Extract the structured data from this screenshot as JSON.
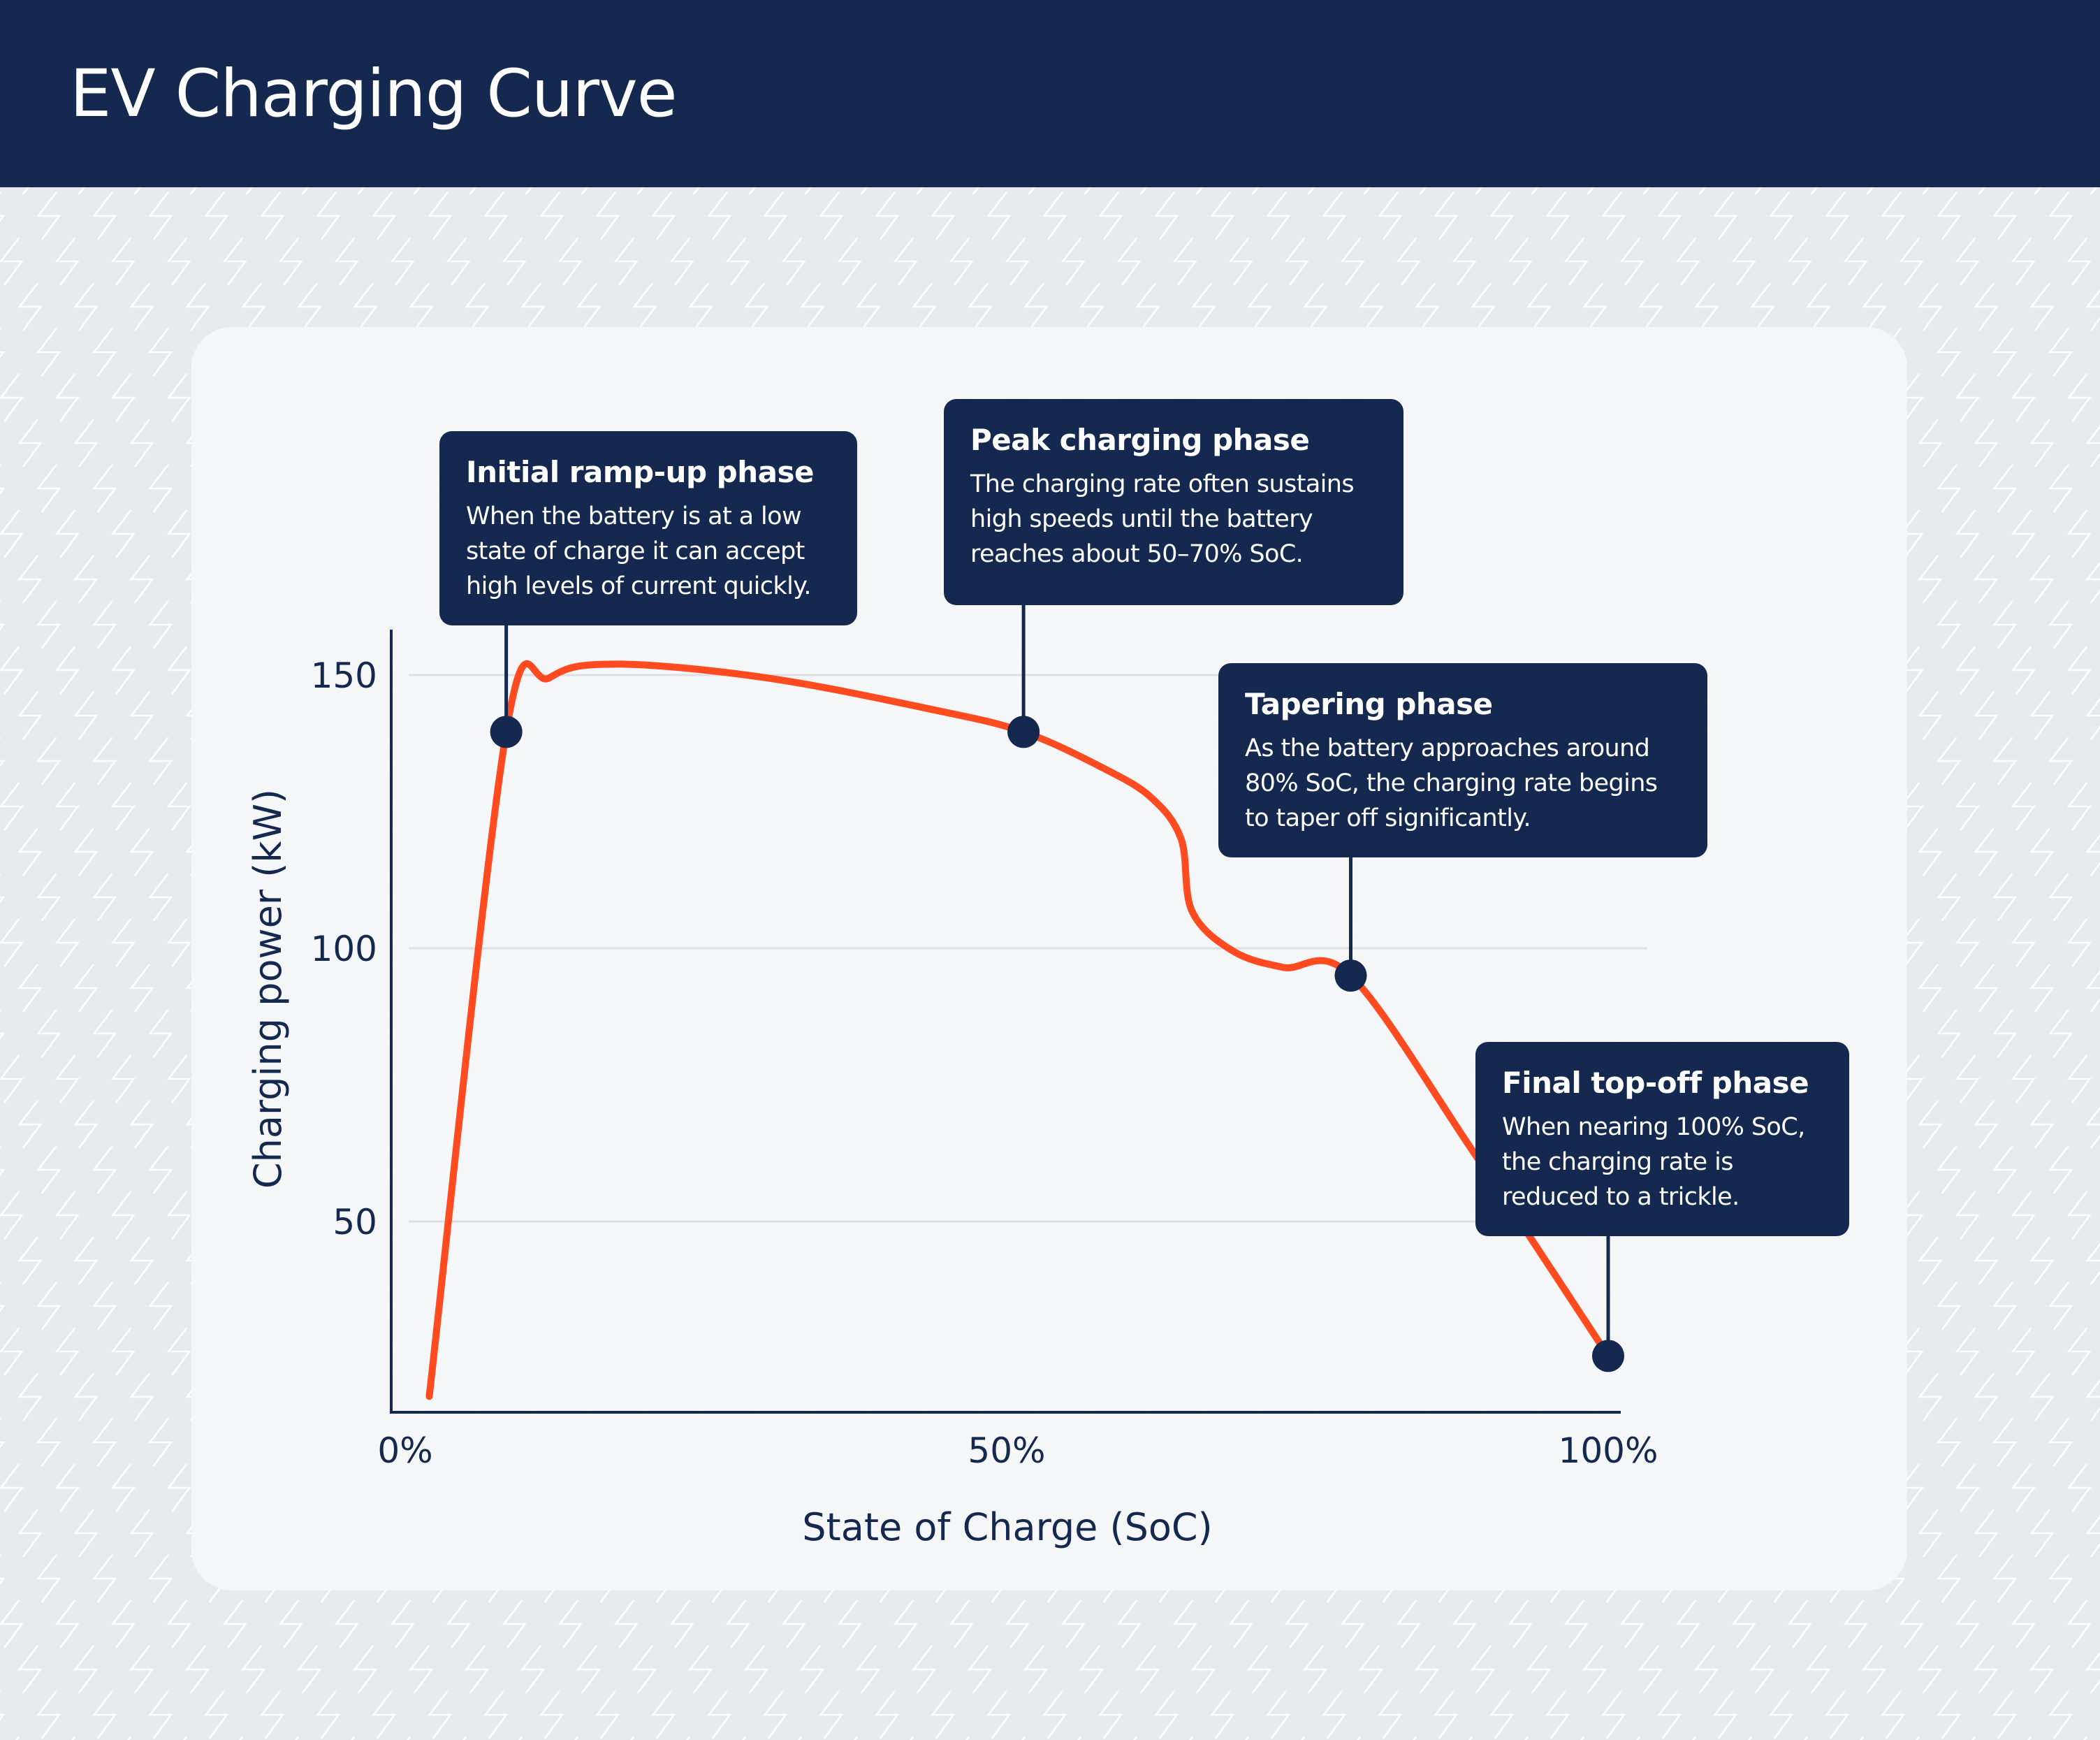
{
  "header": {
    "title": "EV Charging Curve"
  },
  "colors": {
    "navy": "#15284f",
    "curve": "#ff4b1f",
    "background": "#e7eaed",
    "card": "#f4f5f7",
    "grid": "#dcdfe4"
  },
  "background_icon": "lightning-bolt-pattern",
  "chart_data": {
    "type": "line",
    "title": "",
    "xlabel": "State of Charge (SoC)",
    "ylabel": "Charging power (kW)",
    "xlim": [
      0,
      100
    ],
    "ylim": [
      15,
      160
    ],
    "x_ticks": [
      {
        "value": 0,
        "label": "0%"
      },
      {
        "value": 50,
        "label": "50%"
      },
      {
        "value": 100,
        "label": "100%"
      }
    ],
    "y_ticks": [
      {
        "value": 50,
        "label": "50"
      },
      {
        "value": 100,
        "label": "100"
      },
      {
        "value": 150,
        "label": "150"
      }
    ],
    "grid": "horizontal",
    "series": [
      {
        "x": [
          2,
          8.4,
          12,
          17.5,
          30,
          44,
          51.4,
          58,
          62,
          64.5,
          65.4,
          68.8,
          73,
          78.6,
          88.8,
          100
        ],
        "y": [
          18,
          139.6,
          149.5,
          152,
          149.5,
          143.6,
          139.6,
          133,
          127.6,
          120,
          106.8,
          99.5,
          96.5,
          95,
          62.7,
          25.4
        ]
      }
    ],
    "annotations": [
      {
        "x": 8.4,
        "y": 139.6,
        "title": "Initial ramp-up phase",
        "text": "When the battery is at a low state of charge it can accept high levels of current quickly."
      },
      {
        "x": 51.4,
        "y": 139.6,
        "title": "Peak charging phase",
        "text": "The charging rate often sustains high speeds until the battery reaches about 50–70% SoC."
      },
      {
        "x": 78.6,
        "y": 95,
        "title": "Tapering phase",
        "text": "As the battery approaches around 80% SoC, the charging rate begins to taper off significantly."
      },
      {
        "x": 100,
        "y": 25.4,
        "title": "Final top-off phase",
        "text": "When nearing 100% SoC, the charging rate is reduced to a trickle."
      }
    ]
  }
}
